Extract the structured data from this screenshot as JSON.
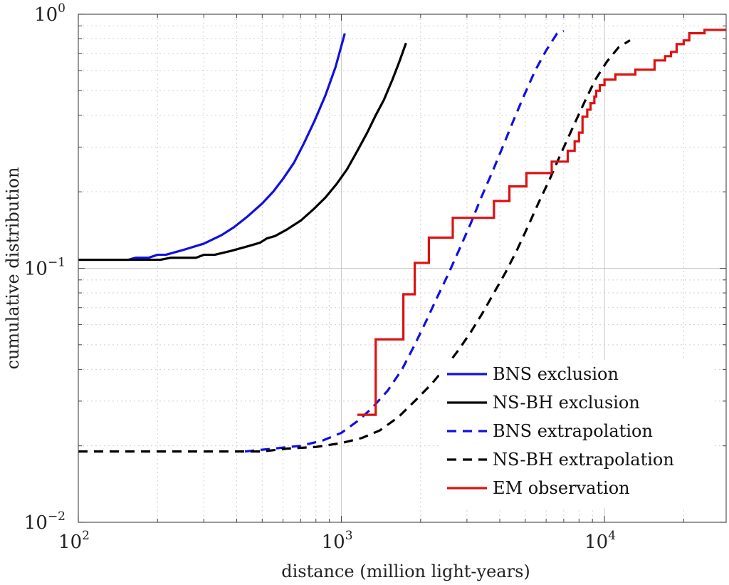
{
  "chart_data": {
    "type": "line",
    "xlabel": "distance (million light-years)",
    "ylabel": "cumulative distribution",
    "xscale": "log",
    "yscale": "log",
    "xlim": [
      100,
      29000
    ],
    "ylim": [
      0.01,
      1
    ],
    "grid": true,
    "legend_position": "bottom-right",
    "x_ticks": [
      {
        "value": 100,
        "base": "10",
        "exp": "2"
      },
      {
        "value": 1000,
        "base": "10",
        "exp": "3"
      },
      {
        "value": 10000,
        "base": "10",
        "exp": "4"
      }
    ],
    "y_ticks": [
      {
        "value": 0.01,
        "base": "10",
        "exp": "−2"
      },
      {
        "value": 0.1,
        "base": "10",
        "exp": "−1"
      },
      {
        "value": 1,
        "base": "10",
        "exp": "0"
      }
    ],
    "series": [
      {
        "name": "BNS exclusion",
        "color": "#1010e0",
        "dash": "solid",
        "step": false,
        "points": [
          [
            100,
            0.108
          ],
          [
            155,
            0.108
          ],
          [
            165,
            0.11
          ],
          [
            185,
            0.11
          ],
          [
            200,
            0.113
          ],
          [
            215,
            0.113
          ],
          [
            250,
            0.118
          ],
          [
            300,
            0.125
          ],
          [
            350,
            0.135
          ],
          [
            390,
            0.145
          ],
          [
            440,
            0.16
          ],
          [
            500,
            0.18
          ],
          [
            550,
            0.2
          ],
          [
            600,
            0.225
          ],
          [
            660,
            0.26
          ],
          [
            720,
            0.31
          ],
          [
            790,
            0.38
          ],
          [
            870,
            0.48
          ],
          [
            950,
            0.62
          ],
          [
            1030,
            0.84
          ]
        ]
      },
      {
        "name": "NS-BH exclusion",
        "color": "#000000",
        "dash": "solid",
        "step": false,
        "points": [
          [
            100,
            0.108
          ],
          [
            205,
            0.108
          ],
          [
            225,
            0.11
          ],
          [
            280,
            0.11
          ],
          [
            300,
            0.113
          ],
          [
            330,
            0.113
          ],
          [
            380,
            0.117
          ],
          [
            440,
            0.122
          ],
          [
            490,
            0.126
          ],
          [
            520,
            0.131
          ],
          [
            560,
            0.134
          ],
          [
            620,
            0.142
          ],
          [
            700,
            0.154
          ],
          [
            780,
            0.17
          ],
          [
            870,
            0.19
          ],
          [
            960,
            0.215
          ],
          [
            1050,
            0.245
          ],
          [
            1150,
            0.29
          ],
          [
            1250,
            0.34
          ],
          [
            1350,
            0.4
          ],
          [
            1450,
            0.46
          ],
          [
            1560,
            0.55
          ],
          [
            1660,
            0.65
          ],
          [
            1760,
            0.77
          ]
        ]
      },
      {
        "name": "BNS extrapolation",
        "color": "#1010e0",
        "dash": "dashed",
        "step": false,
        "points": [
          [
            430,
            0.019
          ],
          [
            550,
            0.0195
          ],
          [
            700,
            0.02
          ],
          [
            850,
            0.021
          ],
          [
            1000,
            0.0225
          ],
          [
            1150,
            0.025
          ],
          [
            1300,
            0.028
          ],
          [
            1500,
            0.033
          ],
          [
            1700,
            0.04
          ],
          [
            1900,
            0.05
          ],
          [
            2100,
            0.062
          ],
          [
            2300,
            0.076
          ],
          [
            2550,
            0.095
          ],
          [
            2800,
            0.118
          ],
          [
            3100,
            0.15
          ],
          [
            3400,
            0.19
          ],
          [
            3750,
            0.24
          ],
          [
            4100,
            0.3
          ],
          [
            4500,
            0.38
          ],
          [
            4950,
            0.48
          ],
          [
            5450,
            0.6
          ],
          [
            6000,
            0.72
          ],
          [
            6600,
            0.84
          ],
          [
            7000,
            0.86
          ]
        ]
      },
      {
        "name": "NS-BH extrapolation",
        "color": "#000000",
        "dash": "dashed",
        "step": false,
        "points": [
          [
            100,
            0.019
          ],
          [
            500,
            0.019
          ],
          [
            620,
            0.0195
          ],
          [
            800,
            0.0198
          ],
          [
            1000,
            0.0205
          ],
          [
            1200,
            0.0215
          ],
          [
            1400,
            0.023
          ],
          [
            1650,
            0.026
          ],
          [
            1900,
            0.03
          ],
          [
            2200,
            0.035
          ],
          [
            2500,
            0.041
          ],
          [
            2800,
            0.048
          ],
          [
            3100,
            0.056
          ],
          [
            3450,
            0.067
          ],
          [
            3800,
            0.08
          ],
          [
            4200,
            0.096
          ],
          [
            4650,
            0.118
          ],
          [
            5100,
            0.145
          ],
          [
            5600,
            0.18
          ],
          [
            6200,
            0.225
          ],
          [
            6800,
            0.28
          ],
          [
            7500,
            0.35
          ],
          [
            8300,
            0.44
          ],
          [
            9200,
            0.55
          ],
          [
            10200,
            0.65
          ],
          [
            11300,
            0.74
          ],
          [
            12500,
            0.79
          ]
        ]
      },
      {
        "name": "EM observation",
        "color": "#dd1111",
        "dash": "solid",
        "step": true,
        "points": [
          [
            1150,
            0.0265
          ],
          [
            1350,
            0.0265
          ],
          [
            1350,
            0.0525
          ],
          [
            1720,
            0.0525
          ],
          [
            1720,
            0.079
          ],
          [
            1900,
            0.079
          ],
          [
            1900,
            0.105
          ],
          [
            2150,
            0.105
          ],
          [
            2150,
            0.132
          ],
          [
            2650,
            0.132
          ],
          [
            2650,
            0.158
          ],
          [
            3800,
            0.158
          ],
          [
            3800,
            0.184
          ],
          [
            4350,
            0.184
          ],
          [
            4350,
            0.21
          ],
          [
            5050,
            0.21
          ],
          [
            5050,
            0.237
          ],
          [
            6300,
            0.237
          ],
          [
            6300,
            0.263
          ],
          [
            7250,
            0.263
          ],
          [
            7250,
            0.29
          ],
          [
            7700,
            0.29
          ],
          [
            7700,
            0.316
          ],
          [
            8000,
            0.316
          ],
          [
            8000,
            0.342
          ],
          [
            8250,
            0.342
          ],
          [
            8250,
            0.395
          ],
          [
            8600,
            0.395
          ],
          [
            8600,
            0.421
          ],
          [
            8850,
            0.421
          ],
          [
            8850,
            0.447
          ],
          [
            9150,
            0.447
          ],
          [
            9150,
            0.474
          ],
          [
            9300,
            0.474
          ],
          [
            9300,
            0.5
          ],
          [
            9600,
            0.5
          ],
          [
            9600,
            0.526
          ],
          [
            10000,
            0.526
          ],
          [
            10000,
            0.553
          ],
          [
            11000,
            0.553
          ],
          [
            11000,
            0.579
          ],
          [
            13100,
            0.579
          ],
          [
            13100,
            0.605
          ],
          [
            15500,
            0.605
          ],
          [
            15500,
            0.658
          ],
          [
            17000,
            0.658
          ],
          [
            17000,
            0.684
          ],
          [
            17900,
            0.684
          ],
          [
            17900,
            0.711
          ],
          [
            18800,
            0.711
          ],
          [
            18800,
            0.763
          ],
          [
            20000,
            0.763
          ],
          [
            20000,
            0.789
          ],
          [
            21000,
            0.789
          ],
          [
            21000,
            0.842
          ],
          [
            24000,
            0.842
          ],
          [
            24000,
            0.868
          ],
          [
            29000,
            0.868
          ]
        ]
      }
    ]
  }
}
